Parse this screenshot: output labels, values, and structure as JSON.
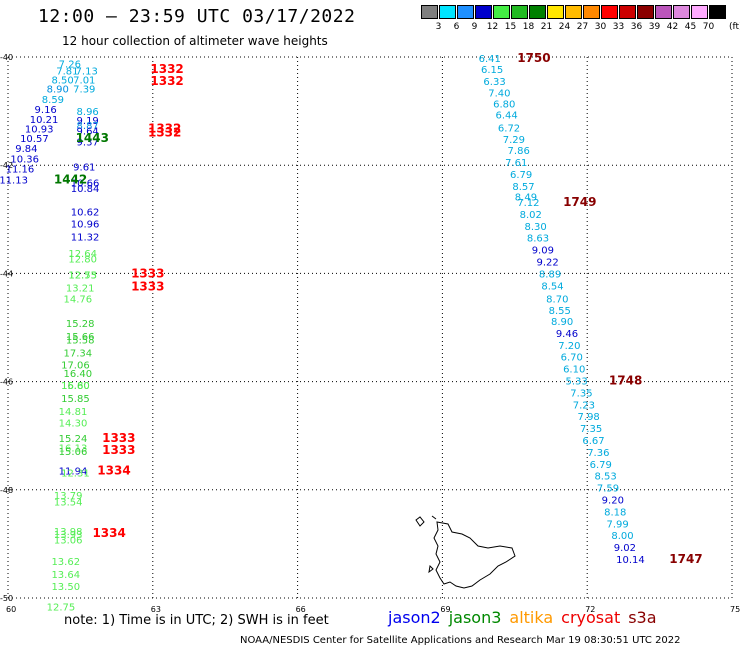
{
  "title": "12:00 – 23:59 UTC 03/17/2022",
  "subtitle": "12 hour collection of altimeter wave heights",
  "legend_scale": {
    "unit": "(ft)",
    "items": [
      {
        "label": "3",
        "color": "#7f7f7f"
      },
      {
        "label": "6",
        "color": "#00e5ff"
      },
      {
        "label": "9",
        "color": "#1e90ff"
      },
      {
        "label": "12",
        "color": "#0000cd"
      },
      {
        "label": "15",
        "color": "#44ee44"
      },
      {
        "label": "18",
        "color": "#22bb22"
      },
      {
        "label": "21",
        "color": "#008000"
      },
      {
        "label": "24",
        "color": "#ffe600"
      },
      {
        "label": "27",
        "color": "#ffbb00"
      },
      {
        "label": "30",
        "color": "#ff8800"
      },
      {
        "label": "33",
        "color": "#ff0000"
      },
      {
        "label": "36",
        "color": "#cc0000"
      },
      {
        "label": "39",
        "color": "#8b0000"
      },
      {
        "label": "42",
        "color": "#bb55bb"
      },
      {
        "label": "45",
        "color": "#dd88dd"
      },
      {
        "label": "70",
        "color": "#ffaaff"
      },
      {
        "label": "",
        "color": "#000000"
      }
    ]
  },
  "axes": {
    "x_ticks": [
      "60",
      "63",
      "66",
      "69",
      "72",
      "75"
    ],
    "y_ticks": [
      "-40",
      "-42",
      "-44",
      "-46",
      "-48",
      "-50"
    ]
  },
  "colors": {
    "s6": "#00aadd",
    "s9": "#0090e0",
    "s12": "#0000cc",
    "s15": "#55ee55",
    "s18": "#33cc33",
    "time_red": "#ff0000",
    "time_green": "#007700",
    "time_darkred": "#880000"
  },
  "track_west": {
    "points": [
      {
        "v": "7.26",
        "lon": 61.05,
        "lat": -40.12,
        "c": "s6"
      },
      {
        "v": "7.81",
        "lon": 61.0,
        "lat": -40.25,
        "c": "s6"
      },
      {
        "v": "7.13",
        "lon": 61.4,
        "lat": -40.25,
        "c": "s6"
      },
      {
        "v": "8.50",
        "lon": 60.9,
        "lat": -40.42,
        "c": "s6"
      },
      {
        "v": "7.01",
        "lon": 61.35,
        "lat": -40.42,
        "c": "s6"
      },
      {
        "v": "8.90",
        "lon": 60.8,
        "lat": -40.58,
        "c": "s9"
      },
      {
        "v": "7.39",
        "lon": 61.35,
        "lat": -40.58,
        "c": "s6"
      },
      {
        "v": "8.59",
        "lon": 60.7,
        "lat": -40.78,
        "c": "s6"
      },
      {
        "v": "9.16",
        "lon": 60.55,
        "lat": -40.96,
        "c": "s12"
      },
      {
        "v": "8.96",
        "lon": 61.42,
        "lat": -41.0,
        "c": "s6"
      },
      {
        "v": "10.21",
        "lon": 60.45,
        "lat": -41.15,
        "c": "s12"
      },
      {
        "v": "9.19",
        "lon": 61.42,
        "lat": -41.16,
        "c": "s12"
      },
      {
        "v": "10.93",
        "lon": 60.35,
        "lat": -41.32,
        "c": "s12"
      },
      {
        "v": "8.87",
        "lon": 61.42,
        "lat": -41.26,
        "c": "s9"
      },
      {
        "v": "9.64",
        "lon": 61.42,
        "lat": -41.36,
        "c": "s12"
      },
      {
        "v": "10.57",
        "lon": 60.25,
        "lat": -41.5,
        "c": "s12"
      },
      {
        "v": "9.37",
        "lon": 61.42,
        "lat": -41.56,
        "c": "s12"
      },
      {
        "v": "9.84",
        "lon": 60.15,
        "lat": -41.68,
        "c": "s12"
      },
      {
        "v": "10.36",
        "lon": 60.05,
        "lat": -41.88,
        "c": "s12"
      },
      {
        "v": "9.61",
        "lon": 61.35,
        "lat": -42.02,
        "c": "s12"
      },
      {
        "v": "11.16",
        "lon": 59.95,
        "lat": -42.06,
        "c": "s12"
      },
      {
        "v": "11.13",
        "lon": 59.82,
        "lat": -42.26,
        "c": "s12"
      },
      {
        "v": "10.66",
        "lon": 61.3,
        "lat": -42.32,
        "c": "s12"
      },
      {
        "v": "10.84",
        "lon": 61.3,
        "lat": -42.42,
        "c": "s12"
      },
      {
        "v": "10.62",
        "lon": 61.3,
        "lat": -42.86,
        "c": "s12"
      },
      {
        "v": "10.96",
        "lon": 61.3,
        "lat": -43.08,
        "c": "s12"
      },
      {
        "v": "11.32",
        "lon": 61.3,
        "lat": -43.32,
        "c": "s12"
      },
      {
        "v": "12.64",
        "lon": 61.25,
        "lat": -43.62,
        "c": "s15"
      },
      {
        "v": "12.80",
        "lon": 61.25,
        "lat": -43.72,
        "c": "s15"
      },
      {
        "v": "12.73",
        "lon": 61.25,
        "lat": -44.02,
        "c": "s15"
      },
      {
        "v": "12.55",
        "lon": 61.25,
        "lat": -44.02,
        "c": "s15"
      },
      {
        "v": "13.21",
        "lon": 61.2,
        "lat": -44.26,
        "c": "s15"
      },
      {
        "v": "14.76",
        "lon": 61.15,
        "lat": -44.46,
        "c": "s15"
      },
      {
        "v": "15.28",
        "lon": 61.2,
        "lat": -44.92,
        "c": "s18"
      },
      {
        "v": "15.66",
        "lon": 61.2,
        "lat": -45.16,
        "c": "s18"
      },
      {
        "v": "15.58",
        "lon": 61.2,
        "lat": -45.22,
        "c": "s18"
      },
      {
        "v": "17.34",
        "lon": 61.15,
        "lat": -45.46,
        "c": "s18"
      },
      {
        "v": "17.06",
        "lon": 61.1,
        "lat": -45.68,
        "c": "s18"
      },
      {
        "v": "16.40",
        "lon": 61.15,
        "lat": -45.84,
        "c": "s18"
      },
      {
        "v": "16.60",
        "lon": 61.1,
        "lat": -46.06,
        "c": "s18"
      },
      {
        "v": "15.80",
        "lon": 61.1,
        "lat": -46.06,
        "c": "s15"
      },
      {
        "v": "15.85",
        "lon": 61.1,
        "lat": -46.3,
        "c": "s18"
      },
      {
        "v": "14.81",
        "lon": 61.05,
        "lat": -46.54,
        "c": "s15"
      },
      {
        "v": "14.30",
        "lon": 61.05,
        "lat": -46.76,
        "c": "s15"
      },
      {
        "v": "15.24",
        "lon": 61.05,
        "lat": -47.04,
        "c": "s18"
      },
      {
        "v": "16.13",
        "lon": 61.05,
        "lat": -47.22,
        "c": "s15"
      },
      {
        "v": "15.06",
        "lon": 61.05,
        "lat": -47.28,
        "c": "s18"
      },
      {
        "v": "11.94",
        "lon": 61.05,
        "lat": -47.64,
        "c": "s12"
      },
      {
        "v": "12.31",
        "lon": 61.1,
        "lat": -47.68,
        "c": "s15"
      },
      {
        "v": "13.79",
        "lon": 60.95,
        "lat": -48.1,
        "c": "s15"
      },
      {
        "v": "13.54",
        "lon": 60.95,
        "lat": -48.22,
        "c": "s15"
      },
      {
        "v": "13.98",
        "lon": 60.95,
        "lat": -48.76,
        "c": "s15"
      },
      {
        "v": "13.93",
        "lon": 60.95,
        "lat": -48.82,
        "c": "s15"
      },
      {
        "v": "13.06",
        "lon": 60.95,
        "lat": -48.92,
        "c": "s15"
      },
      {
        "v": "13.62",
        "lon": 60.9,
        "lat": -49.32,
        "c": "s15"
      },
      {
        "v": "13.64",
        "lon": 60.9,
        "lat": -49.56,
        "c": "s15"
      },
      {
        "v": "13.50",
        "lon": 60.9,
        "lat": -49.78,
        "c": "s15"
      },
      {
        "v": "12.75",
        "lon": 60.8,
        "lat": -50.16,
        "c": "s15"
      }
    ],
    "times": [
      {
        "t": "1332",
        "lon": 62.95,
        "lat": -40.22,
        "c": "time_red"
      },
      {
        "t": "1332",
        "lon": 62.95,
        "lat": -40.44,
        "c": "time_red"
      },
      {
        "t": "1332",
        "lon": 62.9,
        "lat": -41.32,
        "c": "time_red"
      },
      {
        "t": "1332",
        "lon": 62.9,
        "lat": -41.4,
        "c": "time_red"
      },
      {
        "t": "1443",
        "lon": 61.4,
        "lat": -41.5,
        "c": "time_green"
      },
      {
        "t": "1442",
        "lon": 60.95,
        "lat": -42.26,
        "c": "time_green"
      },
      {
        "t": "1333",
        "lon": 62.55,
        "lat": -44.0,
        "c": "time_red"
      },
      {
        "t": "1333",
        "lon": 62.55,
        "lat": -44.24,
        "c": "time_red"
      },
      {
        "t": "1333",
        "lon": 61.95,
        "lat": -47.04,
        "c": "time_red"
      },
      {
        "t": "1333",
        "lon": 61.95,
        "lat": -47.26,
        "c": "time_red"
      },
      {
        "t": "1334",
        "lon": 61.85,
        "lat": -47.64,
        "c": "time_red"
      },
      {
        "t": "1334",
        "lon": 61.75,
        "lat": -48.8,
        "c": "time_red"
      }
    ]
  },
  "track_east": {
    "points": [
      {
        "v": "6.41",
        "lon": 69.75,
        "lat": -40.02,
        "c": "s6"
      },
      {
        "v": "6.15",
        "lon": 69.8,
        "lat": -40.22,
        "c": "s6"
      },
      {
        "v": "6.33",
        "lon": 69.85,
        "lat": -40.44,
        "c": "s6"
      },
      {
        "v": "7.40",
        "lon": 69.95,
        "lat": -40.66,
        "c": "s6"
      },
      {
        "v": "6.80",
        "lon": 70.05,
        "lat": -40.86,
        "c": "s6"
      },
      {
        "v": "6.44",
        "lon": 70.1,
        "lat": -41.06,
        "c": "s6"
      },
      {
        "v": "6.72",
        "lon": 70.15,
        "lat": -41.3,
        "c": "s6"
      },
      {
        "v": "7.29",
        "lon": 70.25,
        "lat": -41.52,
        "c": "s6"
      },
      {
        "v": "7.86",
        "lon": 70.35,
        "lat": -41.72,
        "c": "s6"
      },
      {
        "v": "7.61",
        "lon": 70.3,
        "lat": -41.94,
        "c": "s6"
      },
      {
        "v": "6.79",
        "lon": 70.4,
        "lat": -42.16,
        "c": "s6"
      },
      {
        "v": "8.57",
        "lon": 70.45,
        "lat": -42.38,
        "c": "s6"
      },
      {
        "v": "8.49",
        "lon": 70.5,
        "lat": -42.58,
        "c": "s6"
      },
      {
        "v": "7.12",
        "lon": 70.55,
        "lat": -42.68,
        "c": "s6"
      },
      {
        "v": "8.02",
        "lon": 70.6,
        "lat": -42.9,
        "c": "s6"
      },
      {
        "v": "8.30",
        "lon": 70.7,
        "lat": -43.12,
        "c": "s6"
      },
      {
        "v": "8.63",
        "lon": 70.75,
        "lat": -43.34,
        "c": "s6"
      },
      {
        "v": "9.09",
        "lon": 70.85,
        "lat": -43.56,
        "c": "s12"
      },
      {
        "v": "9.22",
        "lon": 70.95,
        "lat": -43.78,
        "c": "s12"
      },
      {
        "v": "8.89",
        "lon": 71.0,
        "lat": -44.0,
        "c": "s6"
      },
      {
        "v": "8.54",
        "lon": 71.05,
        "lat": -44.22,
        "c": "s6"
      },
      {
        "v": "8.70",
        "lon": 71.15,
        "lat": -44.46,
        "c": "s6"
      },
      {
        "v": "8.55",
        "lon": 71.2,
        "lat": -44.68,
        "c": "s6"
      },
      {
        "v": "8.90",
        "lon": 71.25,
        "lat": -44.88,
        "c": "s6"
      },
      {
        "v": "9.46",
        "lon": 71.35,
        "lat": -45.1,
        "c": "s12"
      },
      {
        "v": "7.20",
        "lon": 71.4,
        "lat": -45.32,
        "c": "s6"
      },
      {
        "v": "6.70",
        "lon": 71.45,
        "lat": -45.54,
        "c": "s6"
      },
      {
        "v": "6.10",
        "lon": 71.5,
        "lat": -45.76,
        "c": "s6"
      },
      {
        "v": "5.33",
        "lon": 71.55,
        "lat": -45.98,
        "c": "s6"
      },
      {
        "v": "7.35",
        "lon": 71.65,
        "lat": -46.2,
        "c": "s6"
      },
      {
        "v": "7.23",
        "lon": 71.7,
        "lat": -46.42,
        "c": "s6"
      },
      {
        "v": "7.98",
        "lon": 71.8,
        "lat": -46.64,
        "c": "s6"
      },
      {
        "v": "7.35",
        "lon": 71.85,
        "lat": -46.86,
        "c": "s6"
      },
      {
        "v": "6.67",
        "lon": 71.9,
        "lat": -47.08,
        "c": "s6"
      },
      {
        "v": "7.36",
        "lon": 72.0,
        "lat": -47.3,
        "c": "s6"
      },
      {
        "v": "6.79",
        "lon": 72.05,
        "lat": -47.52,
        "c": "s6"
      },
      {
        "v": "8.53",
        "lon": 72.15,
        "lat": -47.74,
        "c": "s6"
      },
      {
        "v": "7.59",
        "lon": 72.2,
        "lat": -47.96,
        "c": "s6"
      },
      {
        "v": "9.20",
        "lon": 72.3,
        "lat": -48.18,
        "c": "s12"
      },
      {
        "v": "8.18",
        "lon": 72.35,
        "lat": -48.4,
        "c": "s6"
      },
      {
        "v": "7.99",
        "lon": 72.4,
        "lat": -48.62,
        "c": "s6"
      },
      {
        "v": "8.00",
        "lon": 72.5,
        "lat": -48.84,
        "c": "s6"
      },
      {
        "v": "9.02",
        "lon": 72.55,
        "lat": -49.06,
        "c": "s12"
      },
      {
        "v": "10.14",
        "lon": 72.6,
        "lat": -49.28,
        "c": "s12"
      }
    ],
    "times": [
      {
        "t": "1750",
        "lon": 70.55,
        "lat": -40.02,
        "c": "time_darkred"
      },
      {
        "t": "1749",
        "lon": 71.5,
        "lat": -42.68,
        "c": "time_darkred"
      },
      {
        "t": "1748",
        "lon": 72.45,
        "lat": -45.98,
        "c": "time_darkred"
      },
      {
        "t": "1747",
        "lon": 73.7,
        "lat": -49.28,
        "c": "time_darkred"
      }
    ]
  },
  "footer": {
    "note": "note: 1) Time is in UTC; 2) SWH is in feet",
    "credit": "NOAA/NESDIS Center for Satellite Applications and Research    Mar 19 08:30:51 UTC 2022",
    "satellites": [
      {
        "label": "jason2",
        "color": "#0000ee"
      },
      {
        "label": "jason3",
        "color": "#008800"
      },
      {
        "label": "altika",
        "color": "#ff9900"
      },
      {
        "label": "cryosat",
        "color": "#ee0000"
      },
      {
        "label": "s3a",
        "color": "#880000"
      }
    ]
  }
}
